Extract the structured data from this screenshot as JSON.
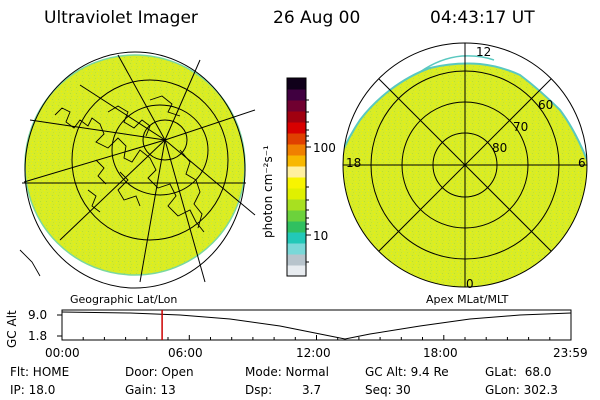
{
  "header": {
    "title": "Ultraviolet Imager",
    "date": "26 Aug 00",
    "time": "04:43:17 UT"
  },
  "left_map": {
    "label": "Geographic Lat/Lon"
  },
  "right_map": {
    "label": "Apex MLat/MLT",
    "mlt_labels": {
      "top": "12",
      "left": "18",
      "right": "6",
      "bottom": "0"
    },
    "lat_labels": [
      "60",
      "70",
      "80"
    ]
  },
  "colorbar": {
    "unit_label": "photon cm⁻²s⁻¹",
    "tick_labels": [
      "100",
      "10"
    ],
    "colors": [
      "#e8ecf0",
      "#b8c4cc",
      "#7ad8d8",
      "#22c8b8",
      "#30c060",
      "#6cd23c",
      "#a8e020",
      "#e0f000",
      "#f8f400",
      "#fff0a0",
      "#f8b800",
      "#f08000",
      "#e04000",
      "#d80000",
      "#a00010",
      "#700030",
      "#400040",
      "#10001a"
    ]
  },
  "altitude_plot": {
    "y_label": "GC Alt",
    "y_ticks": [
      "9.0",
      "1.8"
    ],
    "x_ticks": [
      "00:00",
      "06:00",
      "12:00",
      "18:00",
      "23:59"
    ],
    "current_time_hours": 4.72,
    "marker_color": "#cc0000"
  },
  "status": {
    "flt": "Flt: HOME",
    "door": "Door: Open",
    "mode": "Mode: Normal",
    "gc_alt": "GC Alt: 9.4 Re",
    "glat": "GLat:  68.0",
    "ip": "IP: 18.0",
    "gain": "Gain: 13",
    "dsp_label": "Dsp:",
    "dsp_value": "3.7",
    "seq": "Seq: 30",
    "glon": "GLon: 302.3"
  },
  "colors": {
    "map_fill": "#d8ec28",
    "map_edge": "#7ad8a0",
    "grid": "#000000"
  }
}
